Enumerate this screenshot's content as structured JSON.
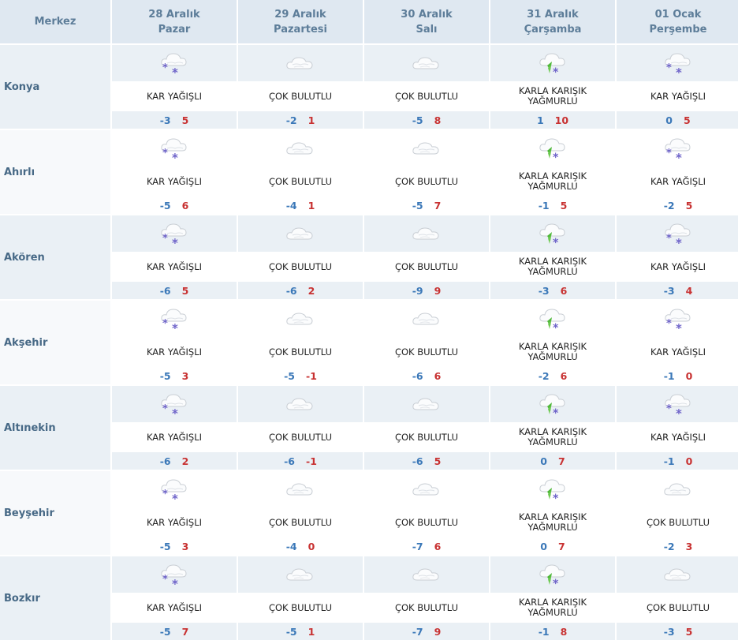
{
  "header": {
    "station_label": "Merkez",
    "days": [
      {
        "date": "28 Aralık",
        "weekday": "Pazar"
      },
      {
        "date": "29 Aralık",
        "weekday": "Pazartesi"
      },
      {
        "date": "30 Aralık",
        "weekday": "Salı"
      },
      {
        "date": "31 Aralık",
        "weekday": "Çarşamba"
      },
      {
        "date": "01 Ocak",
        "weekday": "Perşembe"
      }
    ]
  },
  "rows": [
    {
      "city": "Konya",
      "days": [
        {
          "icon": "snow-icon",
          "desc": "KAR YAĞIŞLI",
          "min": "-3",
          "max": "5"
        },
        {
          "icon": "cloudy-icon",
          "desc": "ÇOK BULUTLU",
          "min": "-2",
          "max": "1"
        },
        {
          "icon": "cloudy-icon",
          "desc": "ÇOK BULUTLU",
          "min": "-5",
          "max": "8"
        },
        {
          "icon": "sleet-icon",
          "desc": "KARLA KARIŞIK YAĞMURLU",
          "min": "1",
          "max": "10"
        },
        {
          "icon": "snow-icon",
          "desc": "KAR YAĞIŞLI",
          "min": "0",
          "max": "5"
        }
      ]
    },
    {
      "city": "Ahırlı",
      "days": [
        {
          "icon": "snow-icon",
          "desc": "KAR YAĞIŞLI",
          "min": "-5",
          "max": "6"
        },
        {
          "icon": "cloudy-icon",
          "desc": "ÇOK BULUTLU",
          "min": "-4",
          "max": "1"
        },
        {
          "icon": "cloudy-icon",
          "desc": "ÇOK BULUTLU",
          "min": "-5",
          "max": "7"
        },
        {
          "icon": "sleet-icon",
          "desc": "KARLA KARIŞIK YAĞMURLU",
          "min": "-1",
          "max": "5"
        },
        {
          "icon": "snow-icon",
          "desc": "KAR YAĞIŞLI",
          "min": "-2",
          "max": "5"
        }
      ]
    },
    {
      "city": "Akören",
      "days": [
        {
          "icon": "snow-icon",
          "desc": "KAR YAĞIŞLI",
          "min": "-6",
          "max": "5"
        },
        {
          "icon": "cloudy-icon",
          "desc": "ÇOK BULUTLU",
          "min": "-6",
          "max": "2"
        },
        {
          "icon": "cloudy-icon",
          "desc": "ÇOK BULUTLU",
          "min": "-9",
          "max": "9"
        },
        {
          "icon": "sleet-icon",
          "desc": "KARLA KARIŞIK YAĞMURLU",
          "min": "-3",
          "max": "6"
        },
        {
          "icon": "snow-icon",
          "desc": "KAR YAĞIŞLI",
          "min": "-3",
          "max": "4"
        }
      ]
    },
    {
      "city": "Akşehir",
      "days": [
        {
          "icon": "snow-icon",
          "desc": "KAR YAĞIŞLI",
          "min": "-5",
          "max": "3"
        },
        {
          "icon": "cloudy-icon",
          "desc": "ÇOK BULUTLU",
          "min": "-5",
          "max": "-1"
        },
        {
          "icon": "cloudy-icon",
          "desc": "ÇOK BULUTLU",
          "min": "-6",
          "max": "6"
        },
        {
          "icon": "sleet-icon",
          "desc": "KARLA KARIŞIK YAĞMURLU",
          "min": "-2",
          "max": "6"
        },
        {
          "icon": "snow-icon",
          "desc": "KAR YAĞIŞLI",
          "min": "-1",
          "max": "0"
        }
      ]
    },
    {
      "city": "Altınekin",
      "days": [
        {
          "icon": "snow-icon",
          "desc": "KAR YAĞIŞLI",
          "min": "-6",
          "max": "2"
        },
        {
          "icon": "cloudy-icon",
          "desc": "ÇOK BULUTLU",
          "min": "-6",
          "max": "-1"
        },
        {
          "icon": "cloudy-icon",
          "desc": "ÇOK BULUTLU",
          "min": "-6",
          "max": "5"
        },
        {
          "icon": "sleet-icon",
          "desc": "KARLA KARIŞIK YAĞMURLU",
          "min": "0",
          "max": "7"
        },
        {
          "icon": "snow-icon",
          "desc": "KAR YAĞIŞLI",
          "min": "-1",
          "max": "0"
        }
      ]
    },
    {
      "city": "Beyşehir",
      "days": [
        {
          "icon": "snow-icon",
          "desc": "KAR YAĞIŞLI",
          "min": "-5",
          "max": "3"
        },
        {
          "icon": "cloudy-icon",
          "desc": "ÇOK BULUTLU",
          "min": "-4",
          "max": "0"
        },
        {
          "icon": "cloudy-icon",
          "desc": "ÇOK BULUTLU",
          "min": "-7",
          "max": "6"
        },
        {
          "icon": "sleet-icon",
          "desc": "KARLA KARIŞIK YAĞMURLU",
          "min": "0",
          "max": "7"
        },
        {
          "icon": "cloudy-icon",
          "desc": "ÇOK BULUTLU",
          "min": "-2",
          "max": "3"
        }
      ]
    },
    {
      "city": "Bozkır",
      "days": [
        {
          "icon": "snow-icon",
          "desc": "KAR YAĞIŞLI",
          "min": "-5",
          "max": "7"
        },
        {
          "icon": "cloudy-icon",
          "desc": "ÇOK BULUTLU",
          "min": "-5",
          "max": "1"
        },
        {
          "icon": "cloudy-icon",
          "desc": "ÇOK BULUTLU",
          "min": "-7",
          "max": "9"
        },
        {
          "icon": "sleet-icon",
          "desc": "KARLA KARIŞIK YAĞMURLU",
          "min": "-1",
          "max": "8"
        },
        {
          "icon": "cloudy-icon",
          "desc": "ÇOK BULUTLU",
          "min": "-3",
          "max": "5"
        }
      ]
    }
  ],
  "colors": {
    "header_bg": "#dfe8f1",
    "header_text": "#5d7d99",
    "city_text": "#476986",
    "band_bg": "#eaf0f5",
    "min_temp": "#3b78b8",
    "max_temp": "#c83232"
  }
}
